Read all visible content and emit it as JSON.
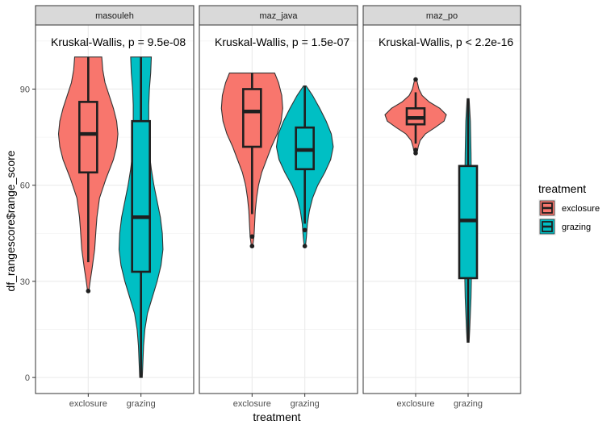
{
  "chart_data": {
    "type": "violin",
    "xlabel": "treatment",
    "ylabel": "df_rangescore$range_score",
    "ylim": [
      -5,
      110
    ],
    "yticks": [
      0,
      30,
      60,
      90
    ],
    "categories": [
      "exclosure",
      "grazing"
    ],
    "legend": {
      "title": "treatment",
      "position": "right",
      "entries": [
        {
          "label": "exclosure",
          "color": "#F8766D"
        },
        {
          "label": "grazing",
          "color": "#00BFC4"
        }
      ]
    },
    "panels": [
      {
        "label": "masouleh",
        "annotation": "Kruskal-Wallis, p = 9.5e-08",
        "groups": [
          {
            "category": "exclosure",
            "color": "#F8766D",
            "whisker_low": 36,
            "q1": 64,
            "median": 76,
            "q3": 86,
            "whisker_high": 100,
            "outliers": [
              27
            ],
            "violin_profile": [
              [
                27,
                0.02
              ],
              [
                30,
                0.06
              ],
              [
                34,
                0.12
              ],
              [
                40,
                0.2
              ],
              [
                46,
                0.24
              ],
              [
                50,
                0.27
              ],
              [
                56,
                0.35
              ],
              [
                62,
                0.55
              ],
              [
                68,
                0.78
              ],
              [
                72,
                0.88
              ],
              [
                76,
                0.92
              ],
              [
                80,
                0.88
              ],
              [
                84,
                0.78
              ],
              [
                88,
                0.65
              ],
              [
                92,
                0.52
              ],
              [
                96,
                0.45
              ],
              [
                100,
                0.42
              ]
            ]
          },
          {
            "category": "grazing",
            "color": "#00BFC4",
            "whisker_low": 0,
            "q1": 33,
            "median": 50,
            "q3": 80,
            "whisker_high": 100,
            "outliers": [],
            "violin_profile": [
              [
                0,
                0.04
              ],
              [
                5,
                0.06
              ],
              [
                10,
                0.08
              ],
              [
                15,
                0.12
              ],
              [
                20,
                0.2
              ],
              [
                25,
                0.35
              ],
              [
                30,
                0.5
              ],
              [
                35,
                0.62
              ],
              [
                40,
                0.68
              ],
              [
                45,
                0.66
              ],
              [
                50,
                0.6
              ],
              [
                55,
                0.5
              ],
              [
                60,
                0.4
              ],
              [
                65,
                0.32
              ],
              [
                70,
                0.26
              ],
              [
                75,
                0.24
              ],
              [
                80,
                0.24
              ],
              [
                85,
                0.24
              ],
              [
                90,
                0.26
              ],
              [
                95,
                0.3
              ],
              [
                100,
                0.32
              ]
            ]
          }
        ]
      },
      {
        "label": "maz_java",
        "annotation": "Kruskal-Wallis, p = 1.5e-07",
        "groups": [
          {
            "category": "exclosure",
            "color": "#F8766D",
            "whisker_low": 51,
            "q1": 72,
            "median": 83,
            "q3": 90,
            "whisker_high": 95,
            "outliers": [
              41,
              44
            ],
            "violin_profile": [
              [
                41,
                0.02
              ],
              [
                44,
                0.06
              ],
              [
                48,
                0.08
              ],
              [
                52,
                0.1
              ],
              [
                56,
                0.14
              ],
              [
                60,
                0.2
              ],
              [
                64,
                0.3
              ],
              [
                68,
                0.45
              ],
              [
                72,
                0.6
              ],
              [
                76,
                0.78
              ],
              [
                80,
                0.9
              ],
              [
                84,
                0.95
              ],
              [
                88,
                0.92
              ],
              [
                92,
                0.82
              ],
              [
                95,
                0.7
              ]
            ]
          },
          {
            "category": "grazing",
            "color": "#00BFC4",
            "whisker_low": 48,
            "q1": 65,
            "median": 71,
            "q3": 78,
            "whisker_high": 91,
            "outliers": [
              41,
              46
            ],
            "violin_profile": [
              [
                41,
                0.02
              ],
              [
                44,
                0.05
              ],
              [
                48,
                0.08
              ],
              [
                52,
                0.14
              ],
              [
                56,
                0.24
              ],
              [
                60,
                0.4
              ],
              [
                64,
                0.62
              ],
              [
                68,
                0.8
              ],
              [
                72,
                0.88
              ],
              [
                76,
                0.82
              ],
              [
                80,
                0.66
              ],
              [
                84,
                0.46
              ],
              [
                88,
                0.24
              ],
              [
                91,
                0.04
              ]
            ]
          }
        ]
      },
      {
        "label": "maz_po",
        "annotation": "Kruskal-Wallis, p < 2.2e-16",
        "groups": [
          {
            "category": "exclosure",
            "color": "#F8766D",
            "whisker_low": 73,
            "q1": 79,
            "median": 81,
            "q3": 84,
            "whisker_high": 89,
            "outliers": [
              70,
              71,
              93
            ],
            "violin_profile": [
              [
                70,
                0.04
              ],
              [
                72,
                0.08
              ],
              [
                74,
                0.14
              ],
              [
                76,
                0.3
              ],
              [
                78,
                0.6
              ],
              [
                80,
                0.88
              ],
              [
                82,
                0.95
              ],
              [
                84,
                0.75
              ],
              [
                86,
                0.42
              ],
              [
                88,
                0.2
              ],
              [
                90,
                0.1
              ],
              [
                93,
                0.03
              ]
            ]
          },
          {
            "category": "grazing",
            "color": "#00BFC4",
            "whisker_low": 11,
            "q1": 31,
            "median": 49,
            "q3": 66,
            "whisker_high": 87,
            "outliers": [],
            "violin_profile": [
              [
                11,
                0.03
              ],
              [
                15,
                0.05
              ],
              [
                20,
                0.07
              ],
              [
                25,
                0.09
              ],
              [
                30,
                0.1
              ],
              [
                40,
                0.11
              ],
              [
                50,
                0.11
              ],
              [
                60,
                0.1
              ],
              [
                70,
                0.09
              ],
              [
                80,
                0.07
              ],
              [
                87,
                0.03
              ]
            ]
          }
        ]
      }
    ]
  }
}
